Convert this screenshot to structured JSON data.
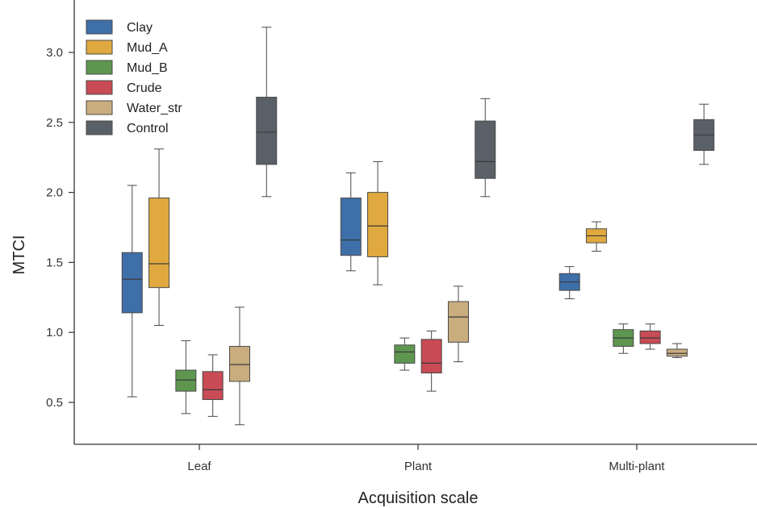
{
  "chart_data": {
    "type": "boxplot",
    "title": "",
    "xlabel": "Acquisition scale",
    "ylabel": "MTCI",
    "categories": [
      "Leaf",
      "Plant",
      "Multi-plant"
    ],
    "ylim": [
      0.22,
      3.3
    ],
    "yticks": [
      0.5,
      1.0,
      1.5,
      2.0,
      2.5,
      3.0
    ],
    "ytick_labels": [
      "0.5",
      "1.0",
      "1.5",
      "2.0",
      "2.5",
      "3.0"
    ],
    "grid": false,
    "legend": "top-left",
    "series": [
      {
        "name": "Clay",
        "color": "#3f6fa8",
        "boxes": [
          {
            "min": 0.54,
            "q1": 1.14,
            "median": 1.38,
            "q3": 1.57,
            "max": 2.05
          },
          {
            "min": 1.44,
            "q1": 1.55,
            "median": 1.66,
            "q3": 1.96,
            "max": 2.14
          },
          {
            "min": 1.24,
            "q1": 1.3,
            "median": 1.36,
            "q3": 1.42,
            "max": 1.47
          }
        ]
      },
      {
        "name": "Mud_A",
        "color": "#e0a93f",
        "boxes": [
          {
            "min": 1.05,
            "q1": 1.32,
            "median": 1.49,
            "q3": 1.96,
            "max": 2.31
          },
          {
            "min": 1.34,
            "q1": 1.54,
            "median": 1.76,
            "q3": 2.0,
            "max": 2.22
          },
          {
            "min": 1.58,
            "q1": 1.64,
            "median": 1.69,
            "q3": 1.74,
            "max": 1.79
          }
        ]
      },
      {
        "name": "Mud_B",
        "color": "#5e9650",
        "boxes": [
          {
            "min": 0.42,
            "q1": 0.58,
            "median": 0.66,
            "q3": 0.73,
            "max": 0.94
          },
          {
            "min": 0.73,
            "q1": 0.78,
            "median": 0.86,
            "q3": 0.91,
            "max": 0.96
          },
          {
            "min": 0.85,
            "q1": 0.9,
            "median": 0.96,
            "q3": 1.02,
            "max": 1.06
          }
        ]
      },
      {
        "name": "Crude",
        "color": "#c84b55",
        "boxes": [
          {
            "min": 0.4,
            "q1": 0.52,
            "median": 0.59,
            "q3": 0.72,
            "max": 0.84
          },
          {
            "min": 0.58,
            "q1": 0.71,
            "median": 0.78,
            "q3": 0.95,
            "max": 1.01
          },
          {
            "min": 0.88,
            "q1": 0.92,
            "median": 0.96,
            "q3": 1.01,
            "max": 1.06
          }
        ]
      },
      {
        "name": "Water_str",
        "color": "#c9ad7f",
        "boxes": [
          {
            "min": 0.34,
            "q1": 0.65,
            "median": 0.77,
            "q3": 0.9,
            "max": 1.18
          },
          {
            "min": 0.79,
            "q1": 0.93,
            "median": 1.11,
            "q3": 1.22,
            "max": 1.33
          },
          {
            "min": 0.82,
            "q1": 0.83,
            "median": 0.85,
            "q3": 0.88,
            "max": 0.92
          }
        ]
      },
      {
        "name": "Control",
        "color": "#5a6068",
        "boxes": [
          {
            "min": 1.97,
            "q1": 2.2,
            "median": 2.43,
            "q3": 2.68,
            "max": 3.18
          },
          {
            "min": 1.97,
            "q1": 2.1,
            "median": 2.22,
            "q3": 2.51,
            "max": 2.67
          },
          {
            "min": 2.2,
            "q1": 2.3,
            "median": 2.41,
            "q3": 2.52,
            "max": 2.63
          }
        ]
      }
    ]
  }
}
